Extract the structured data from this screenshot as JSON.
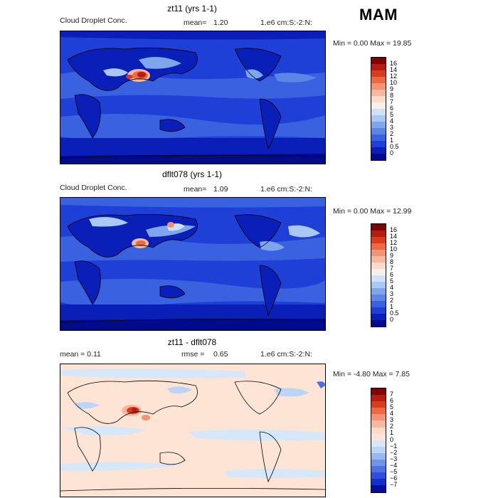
{
  "season": "MAM",
  "panels": [
    {
      "title": "zt11 (yrs 1-1)",
      "left_label": "Cloud Droplet Conc.",
      "mean_label": "mean=",
      "mean_value": "1.20",
      "units": "1.e6 cm:S:-2:N:",
      "range": "Min =    0.00 Max =   19.85",
      "colorbar_labels": [
        "16",
        "14",
        "12",
        "10",
        "9",
        "8",
        "7",
        "6",
        "5",
        "4",
        "3",
        "2",
        "1",
        "0.5",
        "0"
      ]
    },
    {
      "title": "dflt078 (yrs 1-1)",
      "left_label": "Cloud Droplet Conc.",
      "mean_label": "mean=",
      "mean_value": "1.09",
      "units": "1.e6 cm:S:-2:N:",
      "range": "Min =    0.00 Max =   12.99",
      "colorbar_labels": [
        "16",
        "14",
        "12",
        "10",
        "9",
        "8",
        "7",
        "6",
        "5",
        "4",
        "3",
        "2",
        "1",
        "0.5",
        "0"
      ]
    },
    {
      "title": "zt11 - dflt078",
      "left_label": "mean =    0.11",
      "mean_label": "rmse =",
      "mean_value": "0.65",
      "units": "1.e6 cm:S:-2:N:",
      "range": "Min =  -4.80 Max =    7.85",
      "colorbar_labels": [
        "7",
        "6",
        "5",
        "4",
        "3",
        "2",
        "1",
        "0",
        "−1",
        "−2",
        "−3",
        "−4",
        "−5",
        "−6",
        "−7"
      ]
    }
  ],
  "colors": {
    "abs_scale": [
      "#7f0000",
      "#b51d14",
      "#d73c1e",
      "#ec6a43",
      "#f29373",
      "#f6b9a0",
      "#fadcc9",
      "#f7efe9",
      "#cfe0f7",
      "#a9c8f3",
      "#7fa6ec",
      "#5c86e6",
      "#3a62e0",
      "#1f40d6",
      "#0a1fb8",
      "#000a8c"
    ],
    "diff_scale": [
      "#7f0000",
      "#b51d14",
      "#d73c1e",
      "#ec6a43",
      "#f29373",
      "#f6b9a0",
      "#fadcc9",
      "#fde4d4",
      "#d7e7fa",
      "#bcd4f6",
      "#97b7f0",
      "#7294e8",
      "#4f72e2",
      "#2f4fdb",
      "#1530c8",
      "#050f9c"
    ]
  }
}
